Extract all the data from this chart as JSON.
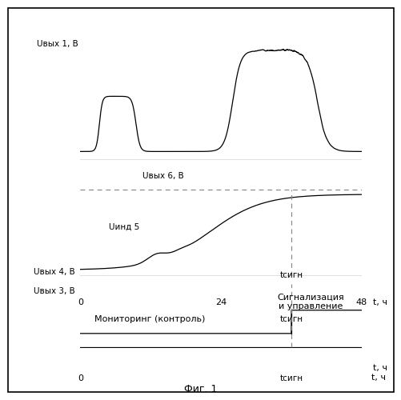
{
  "fig_label": "Фиг. 1",
  "background_color": "#ffffff",
  "panel1_ylabel": "Uвых 1, В",
  "panel2_ylabel": "Uвых 4, В",
  "panel2_u6": "Uвых 6, В",
  "panel2_uind": "Uинд 5",
  "panel3_ylabel": "Uвых 3, В",
  "label_monitor": "Мониторинг (контроль)",
  "label_signal": "Сигнализация\nи управление",
  "tsign": "tсигн",
  "xlabel": "t, ч",
  "tick0": "0",
  "tick24": "24",
  "tick48": "48",
  "line_color": "#000000",
  "dashed_color": "#888888"
}
